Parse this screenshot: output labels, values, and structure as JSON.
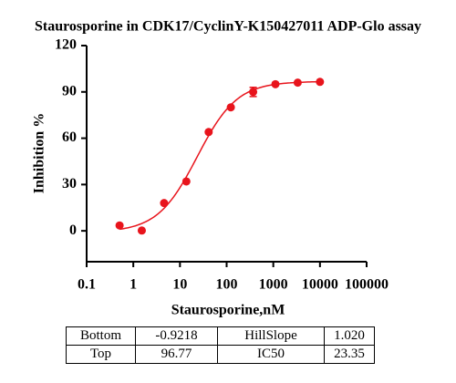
{
  "chart_data": {
    "type": "scatter",
    "title": "Staurosporine in CDK17/CyclinY-K150427011 ADP-Glo assay",
    "x_label": "Staurosporine,nM",
    "y_label": "Inhibition %",
    "log_x": true,
    "xlim": [
      0.1,
      100000
    ],
    "xticks": [
      0.1,
      1,
      10,
      100,
      1000,
      10000,
      100000
    ],
    "ylim": [
      -20,
      120
    ],
    "yticks": [
      0,
      30,
      60,
      90,
      120
    ],
    "series": [
      {
        "color": "#e8141c",
        "x": [
          0.508,
          1.52,
          4.57,
          13.7,
          41.2,
          123,
          370,
          1111,
          3333,
          10000
        ],
        "values": [
          3.5,
          0.2,
          18,
          32,
          64,
          80,
          90,
          95,
          96,
          96.5
        ],
        "errors": [
          null,
          null,
          null,
          null,
          null,
          null,
          3,
          null,
          null,
          null
        ]
      }
    ]
  },
  "table": {
    "rows": [
      [
        "Bottom",
        "-0.9218",
        "HillSlope",
        "1.020"
      ],
      [
        "Top",
        "96.77",
        "IC50",
        "23.35"
      ]
    ]
  }
}
